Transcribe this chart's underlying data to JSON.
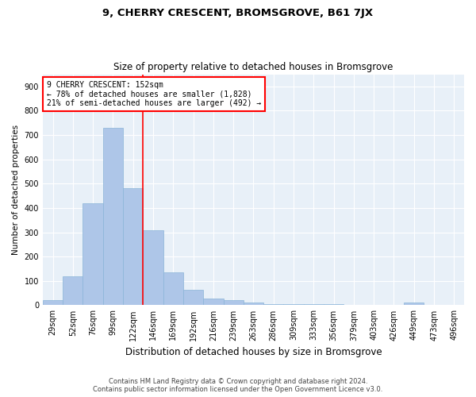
{
  "title1": "9, CHERRY CRESCENT, BROMSGROVE, B61 7JX",
  "title2": "Size of property relative to detached houses in Bromsgrove",
  "xlabel": "Distribution of detached houses by size in Bromsgrove",
  "ylabel": "Number of detached properties",
  "bar_color": "#aec6e8",
  "bar_edge_color": "#8ab4d8",
  "categories": [
    "29sqm",
    "52sqm",
    "76sqm",
    "99sqm",
    "122sqm",
    "146sqm",
    "169sqm",
    "192sqm",
    "216sqm",
    "239sqm",
    "263sqm",
    "286sqm",
    "309sqm",
    "333sqm",
    "356sqm",
    "379sqm",
    "403sqm",
    "426sqm",
    "449sqm",
    "473sqm",
    "496sqm"
  ],
  "values": [
    20,
    120,
    420,
    730,
    480,
    310,
    135,
    65,
    28,
    20,
    10,
    5,
    5,
    5,
    5,
    2,
    2,
    2,
    10,
    2,
    2
  ],
  "ylim": [
    0,
    950
  ],
  "yticks": [
    0,
    100,
    200,
    300,
    400,
    500,
    600,
    700,
    800,
    900
  ],
  "annotation_text_line1": "9 CHERRY CRESCENT: 152sqm",
  "annotation_text_line2": "← 78% of detached houses are smaller (1,828)",
  "annotation_text_line3": "21% of semi-detached houses are larger (492) →",
  "annotation_box_color": "white",
  "annotation_box_edge_color": "red",
  "vline_color": "red",
  "vline_x": 4.5,
  "background_color": "#e8f0f8",
  "grid_color": "white",
  "footer_line1": "Contains HM Land Registry data © Crown copyright and database right 2024.",
  "footer_line2": "Contains public sector information licensed under the Open Government Licence v3.0.",
  "title1_fontsize": 9.5,
  "title2_fontsize": 8.5,
  "xlabel_fontsize": 8.5,
  "ylabel_fontsize": 7.5,
  "tick_fontsize": 7.0,
  "annotation_fontsize": 7.0,
  "footer_fontsize": 6.0
}
